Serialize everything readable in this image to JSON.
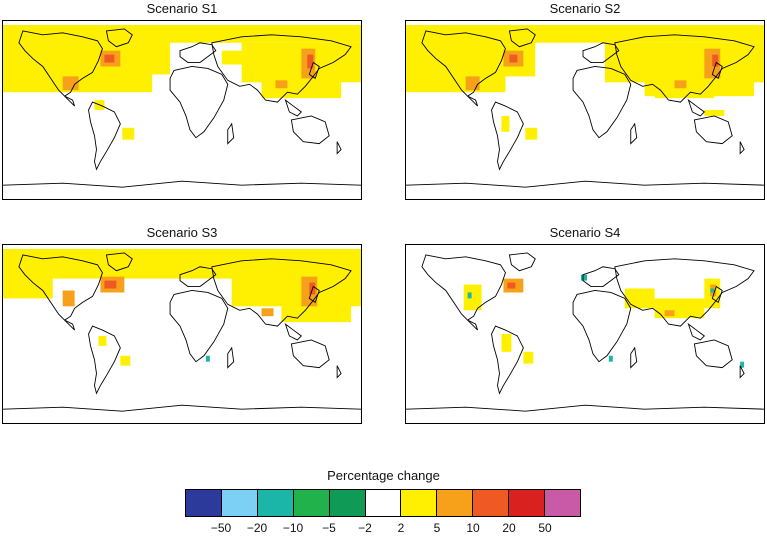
{
  "panels": [
    {
      "title": "Scenario S1",
      "variant": "s1"
    },
    {
      "title": "Scenario S2",
      "variant": "s2"
    },
    {
      "title": "Scenario S3",
      "variant": "s3"
    },
    {
      "title": "Scenario S4",
      "variant": "s4"
    }
  ],
  "legend": {
    "title": "Percentage change",
    "ticks": [
      "−50",
      "−20",
      "−10",
      "−5",
      "−2",
      "2",
      "5",
      "10",
      "20",
      "50"
    ],
    "colors": [
      "#2b3a9b",
      "#7ccff5",
      "#1cb6a9",
      "#22b24c",
      "#0f9a55",
      "#ffffff",
      "#ffef00",
      "#f7a11a",
      "#ef5a23",
      "#d9211f",
      "#c85aa8"
    ]
  },
  "map_colors": {
    "low": "#ffef00",
    "mid": "#f7a11a",
    "high": "#ef5a23",
    "decrease": "#1cb6a9"
  }
}
